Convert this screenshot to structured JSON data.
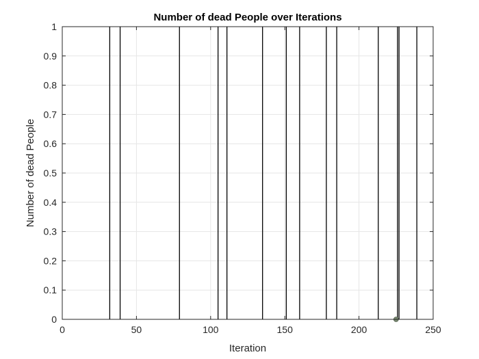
{
  "chart_data": {
    "type": "line",
    "title": "Number of dead People over Iterations",
    "xlabel": "Iteration",
    "ylabel": "Number of dead People",
    "xlim": [
      0,
      250
    ],
    "ylim": [
      0,
      1
    ],
    "xticks": [
      "0",
      "50",
      "100",
      "150",
      "200",
      "250"
    ],
    "yticks": [
      "0",
      "0.1",
      "0.2",
      "0.3",
      "0.4",
      "0.5",
      "0.6",
      "0.7",
      "0.8",
      "0.9",
      "1"
    ],
    "grid": true,
    "series": [
      {
        "color": "#000000",
        "description": "spikes from 0 to 1 at each listed iteration",
        "spikes_x": [
          32,
          39,
          79,
          105,
          111,
          135,
          151,
          160,
          178,
          185,
          213,
          226,
          227,
          239
        ]
      }
    ],
    "marker_points": [
      {
        "x": 225,
        "y": 0,
        "color": "#77876f"
      }
    ]
  }
}
